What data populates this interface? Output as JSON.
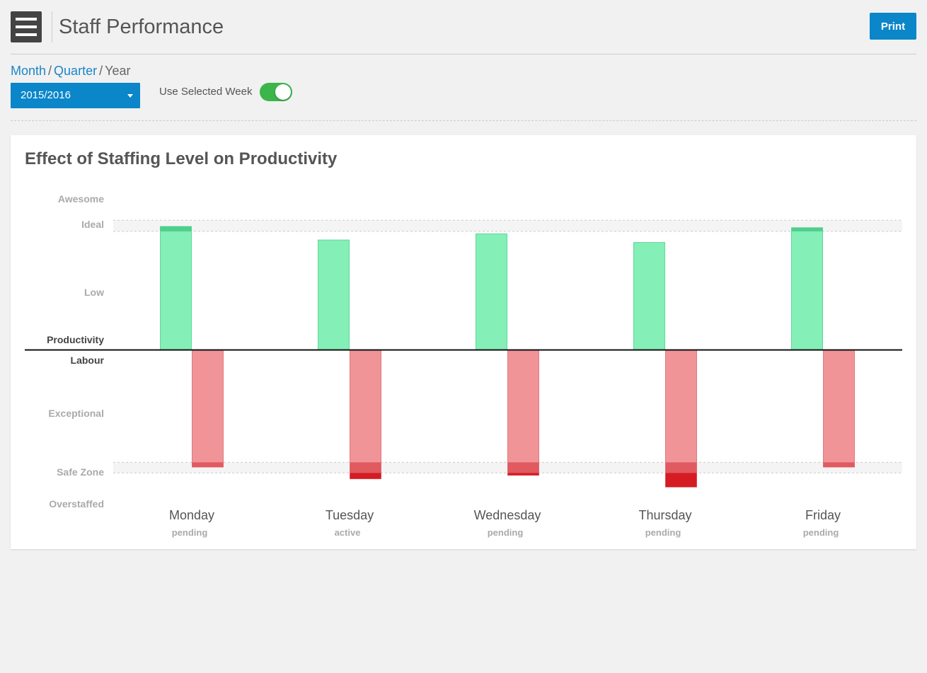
{
  "header": {
    "menu_icon": "hamburger-menu-icon",
    "title": "Staff Performance",
    "print_label": "Print"
  },
  "period_nav": {
    "month": "Month",
    "quarter": "Quarter",
    "year": "Year",
    "separator": "/"
  },
  "year_select": {
    "value": "2015/2016",
    "caret_icon": "caret-down-icon"
  },
  "week_toggle": {
    "label": "Use Selected Week",
    "on": true
  },
  "card": {
    "title": "Effect of Staffing Level on Productivity"
  },
  "chart_data": {
    "type": "bar",
    "y_labels_top": [
      "Awesome",
      "Ideal",
      "Low",
      "Productivity"
    ],
    "y_labels_bottom": [
      "Labour",
      "Exceptional",
      "Safe Zone",
      "Overstaffed"
    ],
    "categories": [
      "Monday",
      "Tuesday",
      "Wednesday",
      "Thursday",
      "Friday"
    ],
    "statuses": [
      "pending",
      "active",
      "pending",
      "pending",
      "pending"
    ],
    "series": [
      {
        "name": "Productivity",
        "values": [
          1.0,
          0.89,
          0.94,
          0.87,
          0.99
        ]
      },
      {
        "name": "Labour",
        "values": [
          1.0,
          1.1,
          1.07,
          1.17,
          1.0
        ]
      }
    ],
    "ideal_band": [
      0.96,
      1.05
    ],
    "safe_zone_band": [
      0.96,
      1.05
    ],
    "colors": {
      "productivity": "#84efb7",
      "productivity_edge": "#2bb86b",
      "labour": "#f09498",
      "labour_edge": "#d9595e",
      "safe_zone_overlay": "#e05a60",
      "overstaffed": "#d41c22",
      "band": "#f4f4f4"
    }
  }
}
